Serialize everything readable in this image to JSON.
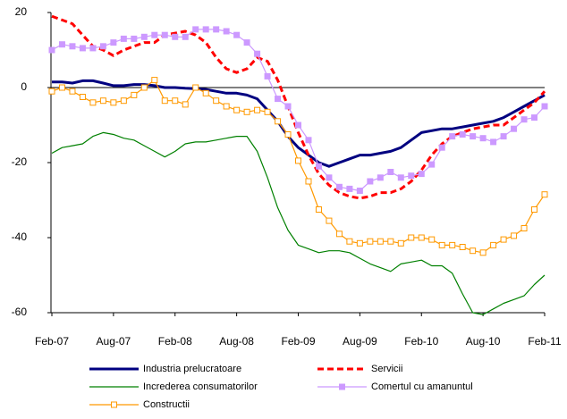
{
  "chart_data": {
    "type": "line",
    "categories": [
      "Feb-07",
      null,
      null,
      null,
      null,
      null,
      "Aug-07",
      null,
      null,
      null,
      null,
      null,
      "Feb-08",
      null,
      null,
      null,
      null,
      null,
      "Aug-08",
      null,
      null,
      null,
      null,
      null,
      "Feb-09",
      null,
      null,
      null,
      null,
      null,
      "Aug-09",
      null,
      null,
      null,
      null,
      null,
      "Feb-10",
      null,
      null,
      null,
      null,
      null,
      "Aug-10",
      null,
      null,
      null,
      null,
      null,
      "Feb-11"
    ],
    "ylim": [
      -60,
      20
    ],
    "yticks": [
      -60,
      -40,
      -20,
      0,
      20
    ],
    "series": [
      {
        "name": "Industria prelucratoare",
        "color": "#000080",
        "width": 3,
        "dashed": false,
        "marker": null,
        "values": [
          1.5,
          1.5,
          1.2,
          1.8,
          1.8,
          1.2,
          0.5,
          0.5,
          0.8,
          0.8,
          0.5,
          0,
          0,
          -0.2,
          -0.3,
          -0.5,
          -1,
          -1.5,
          -1.5,
          -2,
          -3,
          -6,
          -9,
          -13,
          -16,
          -18,
          -20,
          -21,
          -20,
          -19,
          -18,
          -18,
          -17.5,
          -17,
          -16,
          -14,
          -12,
          -11.5,
          -11,
          -11,
          -10.5,
          -10,
          -9.5,
          -9,
          -8,
          -6.5,
          -5,
          -3.5,
          -2
        ]
      },
      {
        "name": "Servicii",
        "color": "#ff0000",
        "width": 3,
        "dashed": true,
        "marker": null,
        "values": [
          19,
          18,
          17,
          14,
          11,
          10,
          8.5,
          10,
          11,
          12,
          12,
          14,
          14.5,
          15,
          14,
          12,
          8,
          5,
          4,
          5,
          8,
          7,
          2,
          -5,
          -12,
          -18,
          -23,
          -26,
          -28,
          -29,
          -29.5,
          -29,
          -28,
          -28,
          -27,
          -25,
          -22,
          -18,
          -15,
          -13,
          -12,
          -11,
          -10.5,
          -10,
          -10,
          -8,
          -6,
          -4,
          -1
        ]
      },
      {
        "name": "Increderea consumatorilor",
        "color": "#008000",
        "width": 1.2,
        "dashed": false,
        "marker": null,
        "values": [
          -17.5,
          -16,
          -15.5,
          -15,
          -13,
          -12,
          -12.5,
          -13.5,
          -14,
          -15.5,
          -17,
          -18.5,
          -17,
          -15,
          -14.5,
          -14.5,
          -14,
          -13.5,
          -13,
          -13,
          -17,
          -24,
          -32,
          -38,
          -42,
          -43,
          -44,
          -43.5,
          -43.5,
          -44,
          -45.5,
          -47,
          -48,
          -49,
          -47,
          -46.5,
          -46,
          -47.5,
          -47.5,
          -49.5,
          -55,
          -60,
          -60.5,
          -59,
          -57.5,
          -56.5,
          -55.5,
          -52.5,
          -50
        ]
      },
      {
        "name": "Comertul cu amanuntul",
        "color": "#cc99ff",
        "width": 1.2,
        "dashed": false,
        "marker": "filled",
        "values": [
          10,
          11.5,
          11,
          10.5,
          10.5,
          11,
          12,
          13,
          13,
          13.5,
          14,
          14,
          13.5,
          13.5,
          15.5,
          15.5,
          15.5,
          15,
          14,
          12,
          9,
          3,
          -3,
          -5,
          -10,
          -14,
          -21,
          -24,
          -26.5,
          -27,
          -27.5,
          -25,
          -24,
          -22.5,
          -24,
          -23.5,
          -23,
          -20.5,
          -16,
          -13,
          -12.5,
          -13,
          -13.5,
          -14.5,
          -13,
          -11,
          -8.5,
          -8,
          -5
        ]
      },
      {
        "name": "Constructii",
        "color": "#ff9900",
        "width": 1.2,
        "dashed": false,
        "marker": "open",
        "values": [
          -1,
          0,
          -1,
          -2.5,
          -4,
          -3.5,
          -4,
          -3.5,
          -2,
          0,
          2,
          -3.5,
          -3.5,
          -4.5,
          0,
          -1.5,
          -3.5,
          -5,
          -6,
          -6.5,
          -6,
          -6.5,
          -9,
          -12.5,
          -19.5,
          -25,
          -32.5,
          -35.5,
          -39,
          -41,
          -41.5,
          -41,
          -41,
          -41,
          -41.5,
          -40,
          -40,
          -40.5,
          -42,
          -42,
          -42.5,
          -43.5,
          -44,
          -42,
          -40.5,
          -39.5,
          -37.5,
          -32.5,
          -28.5
        ]
      }
    ]
  }
}
